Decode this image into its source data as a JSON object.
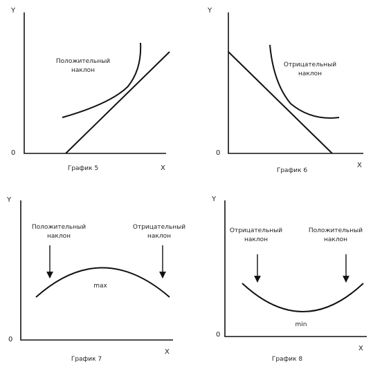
{
  "panels": [
    {
      "y_label": "Y",
      "x_label": "X",
      "origin": "0",
      "caption": "График 5",
      "labels": [
        {
          "lines": [
            "Положительный",
            "наклон"
          ]
        }
      ]
    },
    {
      "y_label": "Y",
      "x_label": "X",
      "origin": "0",
      "caption": "График 6",
      "labels": [
        {
          "lines": [
            "Отрицательный",
            "наклон"
          ]
        }
      ]
    },
    {
      "y_label": "Y",
      "x_label": "X",
      "origin": "0",
      "caption": "График 7",
      "extreme": "max",
      "labels": [
        {
          "lines": [
            "Положительный",
            "наклон"
          ]
        },
        {
          "lines": [
            "Отрицательный",
            "наклон"
          ]
        }
      ]
    },
    {
      "y_label": "Y",
      "x_label": "X",
      "origin": "0",
      "caption": "График 8",
      "extreme": "min",
      "labels": [
        {
          "lines": [
            "Отрицательный",
            "наклон"
          ]
        },
        {
          "lines": [
            "Положительный",
            "наклон"
          ]
        }
      ]
    }
  ]
}
